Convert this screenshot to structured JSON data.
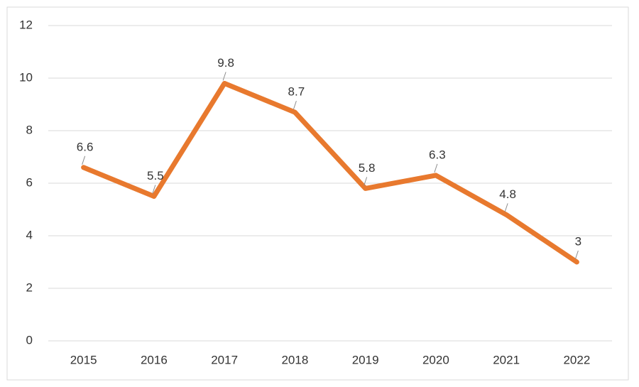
{
  "chart_data": {
    "type": "line",
    "categories": [
      "2015",
      "2016",
      "2017",
      "2018",
      "2019",
      "2020",
      "2021",
      "2022"
    ],
    "values": [
      6.6,
      5.5,
      9.8,
      8.7,
      5.8,
      6.3,
      4.8,
      3
    ],
    "color": "#e8792e",
    "ylim": [
      0,
      12
    ],
    "yticks": [
      0,
      2,
      4,
      6,
      8,
      10,
      12
    ],
    "grid": true
  }
}
